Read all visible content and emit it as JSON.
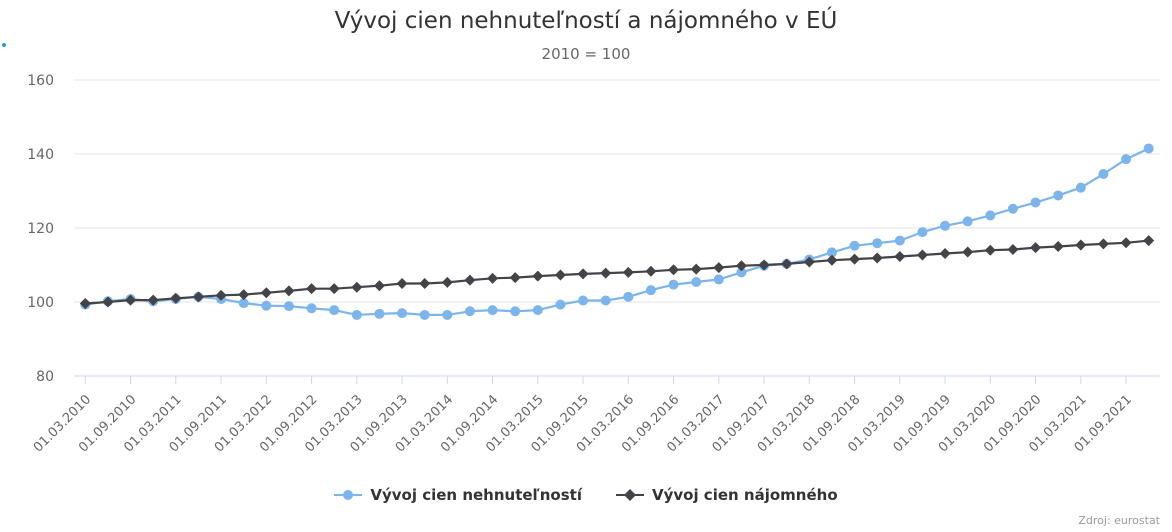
{
  "chart_data": {
    "type": "line",
    "title": "Vývoj cien nehnuteľností a nájomného v EÚ",
    "subtitle": "2010 = 100",
    "ylim": [
      80,
      160
    ],
    "yticks": [
      80,
      100,
      120,
      140,
      160
    ],
    "grid": true,
    "legend_position": "bottom-center",
    "x_tick_labels": [
      "01.03.2010",
      "01.09.2010",
      "01.03.2011",
      "01.09.2011",
      "01.03.2012",
      "01.09.2012",
      "01.03.2013",
      "01.09.2013",
      "01.03.2014",
      "01.09.2014",
      "01.03.2015",
      "01.09.2015",
      "01.03.2016",
      "01.09.2016",
      "01.03.2017",
      "01.09.2017",
      "01.03.2018",
      "01.09.2018",
      "01.03.2019",
      "01.09.2019",
      "01.03.2020",
      "01.09.2020",
      "01.03.2021",
      "01.09.2021"
    ],
    "x": [
      "Q1 2010",
      "Q2 2010",
      "Q3 2010",
      "Q4 2010",
      "Q1 2011",
      "Q2 2011",
      "Q3 2011",
      "Q4 2011",
      "Q1 2012",
      "Q2 2012",
      "Q3 2012",
      "Q4 2012",
      "Q1 2013",
      "Q2 2013",
      "Q3 2013",
      "Q4 2013",
      "Q1 2014",
      "Q2 2014",
      "Q3 2014",
      "Q4 2014",
      "Q1 2015",
      "Q2 2015",
      "Q3 2015",
      "Q4 2015",
      "Q1 2016",
      "Q2 2016",
      "Q3 2016",
      "Q4 2016",
      "Q1 2017",
      "Q2 2017",
      "Q3 2017",
      "Q4 2017",
      "Q1 2018",
      "Q2 2018",
      "Q3 2018",
      "Q4 2018",
      "Q1 2019",
      "Q2 2019",
      "Q3 2019",
      "Q4 2019",
      "Q1 2020",
      "Q2 2020",
      "Q3 2020",
      "Q4 2020",
      "Q1 2021",
      "Q2 2021",
      "Q3 2021",
      "Q4 2021"
    ],
    "series": [
      {
        "name": "Vývoj cien nehnuteľností",
        "color": "#7cb5ec",
        "marker": "circle",
        "values": [
          99.3,
          100.2,
          100.8,
          100.2,
          100.8,
          101.4,
          100.8,
          99.7,
          99.0,
          98.9,
          98.3,
          97.8,
          96.5,
          96.8,
          97.0,
          96.5,
          96.5,
          97.5,
          97.8,
          97.5,
          97.8,
          99.3,
          100.4,
          100.4,
          101.4,
          103.2,
          104.7,
          105.4,
          106.1,
          108.0,
          109.8,
          110.3,
          111.5,
          113.4,
          115.2,
          115.9,
          116.6,
          118.9,
          120.6,
          121.8,
          123.4,
          125.2,
          126.9,
          128.8,
          130.9,
          134.6,
          138.6,
          141.5
        ]
      },
      {
        "name": "Vývoj cien nájomného",
        "color": "#434348",
        "marker": "diamond",
        "values": [
          99.6,
          100.0,
          100.5,
          100.5,
          101.0,
          101.4,
          101.8,
          102.0,
          102.5,
          103.0,
          103.6,
          103.6,
          104.0,
          104.4,
          105.0,
          105.0,
          105.3,
          105.9,
          106.4,
          106.6,
          107.0,
          107.3,
          107.6,
          107.8,
          108.0,
          108.3,
          108.7,
          108.9,
          109.3,
          109.8,
          110.0,
          110.3,
          110.8,
          111.3,
          111.6,
          111.9,
          112.3,
          112.7,
          113.1,
          113.5,
          114.0,
          114.2,
          114.7,
          115.0,
          115.4,
          115.7,
          116.0,
          116.6
        ]
      }
    ]
  },
  "source": "Zdroj: eurostat"
}
